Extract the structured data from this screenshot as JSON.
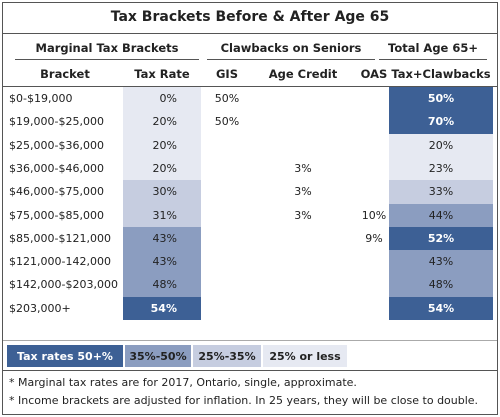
{
  "title": "Tax Brackets Before & After Age 65",
  "groups": [
    "Marginal Tax Brackets",
    "Clawbacks on Seniors",
    "Total Age 65+"
  ],
  "columns": [
    "Bracket",
    "Tax Rate",
    "GIS",
    "Age Credit",
    "OAS",
    "Tax+Clawbacks"
  ],
  "rows": [
    [
      "$0-$19,000",
      "0%",
      "50%",
      null,
      null,
      "50%"
    ],
    [
      "$19,000-$25,000",
      "20%",
      "50%",
      null,
      null,
      "70%"
    ],
    [
      "$25,000-$36,000",
      "20%",
      null,
      null,
      null,
      "20%"
    ],
    [
      "$36,000-$46,000",
      "20%",
      null,
      "3%",
      null,
      "23%"
    ],
    [
      "$46,000-$75,000",
      "30%",
      null,
      "3%",
      null,
      "33%"
    ],
    [
      "$75,000-$85,000",
      "31%",
      null,
      "3%",
      "10%",
      "44%"
    ],
    [
      "$85,000-$121,000",
      "43%",
      null,
      null,
      "9%",
      "52%"
    ],
    [
      "$121,000-142,000",
      "43%",
      null,
      null,
      null,
      "43%"
    ],
    [
      "$142,000-$203,000",
      "48%",
      null,
      null,
      null,
      "48%"
    ],
    [
      "$203,000+",
      "54%",
      null,
      null,
      null,
      "54%"
    ]
  ],
  "rate_colors": [
    "#e6e9f2",
    "#e6e9f2",
    "#e6e9f2",
    "#e6e9f2",
    "#c6cde0",
    "#c6cde0",
    "#8b9dc0",
    "#8b9dc0",
    "#8b9dc0",
    "#3d6095"
  ],
  "total_colors": [
    "#3d6095",
    "#3d6095",
    "#e6e9f2",
    "#e6e9f2",
    "#c6cde0",
    "#8b9dc0",
    "#3d6095",
    "#8b9dc0",
    "#8b9dc0",
    "#3d6095"
  ],
  "legend": [
    {
      "label": "Tax rates 50+%",
      "color": "#3d6095"
    },
    {
      "label": "35%-50%",
      "color": "#8b9dc0"
    },
    {
      "label": "25%-35%",
      "color": "#c6cde0"
    },
    {
      "label": "25% or less",
      "color": "#e6e9f2"
    }
  ],
  "notes": [
    "* Marginal tax rates are for 2017, Ontario, single, approximate.",
    "* Income brackets are adjusted for inflation. In 25 years, they will be close to double."
  ]
}
